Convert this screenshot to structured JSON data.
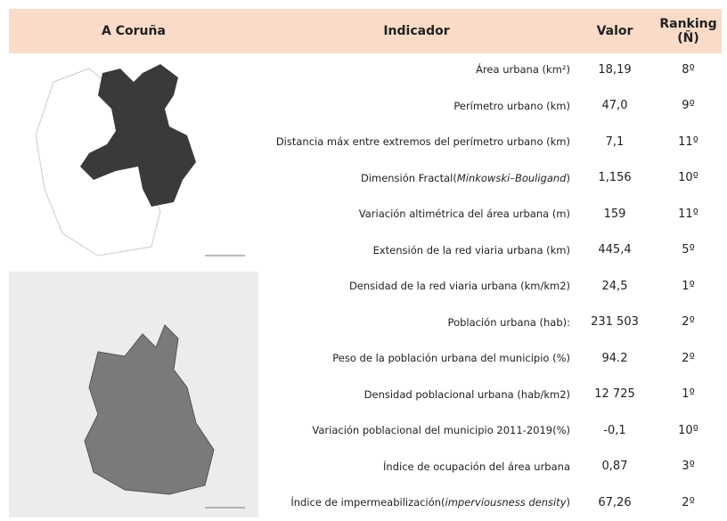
{
  "header": {
    "city": "A Coruña",
    "indicator": "Indicador",
    "value": "Valor",
    "ranking": "Ranking (Ñ)"
  },
  "table": {
    "rows": [
      {
        "indicator": [
          {
            "text": "Área urbana (km²)"
          }
        ],
        "value": "18,19",
        "ranking": "8º"
      },
      {
        "indicator": [
          {
            "text": "Perímetro urbano (km)"
          }
        ],
        "value": "47,0",
        "ranking": "9º"
      },
      {
        "indicator": [
          {
            "text": "Distancia máx entre extremos del perímetro urbano (km)"
          }
        ],
        "value": "7,1",
        "ranking": "11º"
      },
      {
        "indicator": [
          {
            "text": "Dimensión Fractal("
          },
          {
            "text": "Minkowski–Bouligand",
            "italic": true
          },
          {
            "text": ")"
          }
        ],
        "value": "1,156",
        "ranking": "10º"
      },
      {
        "indicator": [
          {
            "text": "Variación altimétrica del área urbana (m)"
          }
        ],
        "value": "159",
        "ranking": "11º"
      },
      {
        "indicator": [
          {
            "text": "Extensión de la red viaria urbana (km)"
          }
        ],
        "value": "445,4",
        "ranking": "5º"
      },
      {
        "indicator": [
          {
            "text": "Densidad de la red viaria urbana (km/km2)"
          }
        ],
        "value": "24,5",
        "ranking": "1º"
      },
      {
        "indicator": [
          {
            "text": "Población urbana (hab):"
          }
        ],
        "value": "231 503",
        "ranking": "2º"
      },
      {
        "indicator": [
          {
            "text": "Peso de la población urbana del municipio (%)"
          }
        ],
        "value": "94.2",
        "ranking": "2º"
      },
      {
        "indicator": [
          {
            "text": "Densidad poblacional urbana (hab/km2)"
          }
        ],
        "value": "12 725",
        "ranking": "1º"
      },
      {
        "indicator": [
          {
            "text": "Variación poblacional del municipio 2011-2019(%)"
          }
        ],
        "value": "-0,1",
        "ranking": "10º"
      },
      {
        "indicator": [
          {
            "text": "Índice de ocupación del área urbana"
          }
        ],
        "value": "0,87",
        "ranking": "3º"
      },
      {
        "indicator": [
          {
            "text": "Índice de impermeabilización("
          },
          {
            "text": "imperviousness density",
            "italic": true
          },
          {
            "text": ")"
          }
        ],
        "value": "67,26",
        "ranking": "2º"
      }
    ]
  }
}
